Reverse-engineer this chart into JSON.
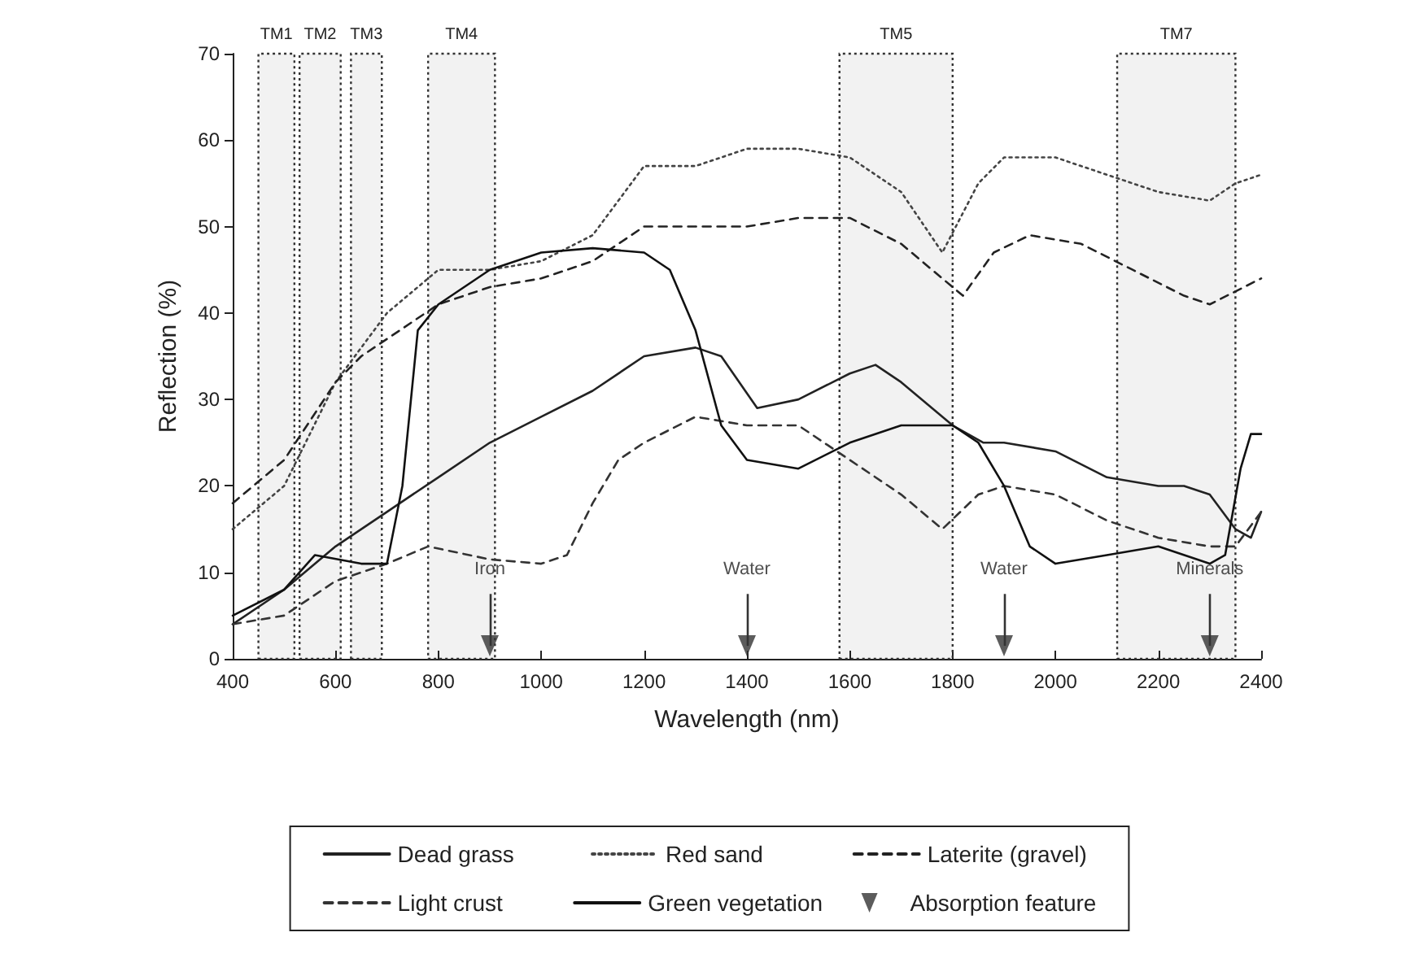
{
  "chart_data": {
    "type": "line",
    "xlabel": "Wavelength (nm)",
    "ylabel": "Reflection (%)",
    "xlim": [
      400,
      2400
    ],
    "xticks": [
      400,
      600,
      800,
      1000,
      1200,
      1400,
      1600,
      1800,
      2000,
      2200,
      2400
    ],
    "ylim": [
      0,
      70
    ],
    "yticks": [
      0,
      10,
      20,
      30,
      40,
      50,
      60,
      70
    ],
    "grid": false,
    "legend": "bottom",
    "marker": "none",
    "series": [
      {
        "name": "Dead grass",
        "color": "#222222",
        "line_style": "solid",
        "x": [
          400,
          500,
          600,
          700,
          800,
          900,
          1000,
          1100,
          1200,
          1300,
          1350,
          1420,
          1500,
          1600,
          1650,
          1700,
          1800,
          1860,
          1900,
          2000,
          2100,
          2200,
          2250,
          2300,
          2350,
          2380,
          2400
        ],
        "values": [
          4,
          8,
          13,
          17,
          21,
          25,
          28,
          31,
          35,
          36,
          35,
          29,
          30,
          33,
          34,
          32,
          27,
          25,
          25,
          24,
          21,
          20,
          20,
          19,
          15,
          14,
          17
        ]
      },
      {
        "name": "Red sand",
        "color": "#444444",
        "line_style": "dotted",
        "x": [
          400,
          500,
          600,
          700,
          800,
          900,
          1000,
          1100,
          1200,
          1300,
          1400,
          1500,
          1600,
          1700,
          1780,
          1850,
          1900,
          2000,
          2100,
          2200,
          2300,
          2350,
          2400
        ],
        "values": [
          15,
          20,
          32,
          40,
          45,
          45,
          46,
          49,
          57,
          57,
          59,
          59,
          58,
          54,
          47,
          55,
          58,
          58,
          56,
          54,
          53,
          55,
          56
        ]
      },
      {
        "name": "Laterite (gravel)",
        "color": "#222222",
        "line_style": "dashed",
        "x": [
          400,
          500,
          600,
          650,
          700,
          800,
          900,
          1000,
          1100,
          1200,
          1300,
          1400,
          1500,
          1600,
          1700,
          1780,
          1820,
          1880,
          1950,
          2050,
          2150,
          2250,
          2300,
          2400
        ],
        "values": [
          18,
          23,
          32,
          35,
          37,
          41,
          43,
          44,
          46,
          50,
          50,
          50,
          51,
          51,
          48,
          44,
          42,
          47,
          49,
          48,
          45,
          42,
          41,
          44
        ]
      },
      {
        "name": "Light crust",
        "color": "#333333",
        "line_style": "dashed",
        "x": [
          400,
          500,
          600,
          700,
          780,
          900,
          1000,
          1050,
          1100,
          1150,
          1200,
          1300,
          1400,
          1500,
          1600,
          1700,
          1780,
          1850,
          1900,
          2000,
          2100,
          2200,
          2300,
          2350,
          2400
        ],
        "values": [
          4,
          5,
          9,
          11,
          13,
          11.5,
          11,
          12,
          18,
          23,
          25,
          28,
          27,
          27,
          23,
          19,
          15,
          19,
          20,
          19,
          16,
          14,
          13,
          13,
          17
        ]
      },
      {
        "name": "Green vegetation",
        "color": "#111111",
        "line_style": "solid",
        "x": [
          400,
          500,
          560,
          650,
          700,
          730,
          760,
          800,
          900,
          1000,
          1100,
          1200,
          1250,
          1300,
          1350,
          1400,
          1500,
          1600,
          1700,
          1800,
          1850,
          1900,
          1950,
          2000,
          2100,
          2200,
          2300,
          2330,
          2360,
          2380,
          2400
        ],
        "values": [
          5,
          8,
          12,
          11,
          11,
          20,
          38,
          41,
          45,
          47,
          47.5,
          47,
          45,
          38,
          27,
          23,
          22,
          25,
          27,
          27,
          25,
          20,
          13,
          11,
          12,
          13,
          11,
          12,
          22,
          26,
          26
        ]
      },
      {
        "name": "Absorption feature",
        "type": "scatter",
        "marker": "triangle",
        "color": "#333333",
        "x": [
          900,
          1400,
          1900,
          2300
        ],
        "values": [
          1.5,
          1.5,
          1.5,
          1.5
        ]
      }
    ],
    "bands": [
      {
        "axis": "x",
        "from": 450,
        "to": 520,
        "label": "TM1"
      },
      {
        "axis": "x",
        "from": 530,
        "to": 610,
        "label": "TM2"
      },
      {
        "axis": "x",
        "from": 630,
        "to": 690,
        "label": "TM3"
      },
      {
        "axis": "x",
        "from": 780,
        "to": 910,
        "label": "TM4"
      },
      {
        "axis": "x",
        "from": 1580,
        "to": 1800,
        "label": "TM5"
      },
      {
        "axis": "x",
        "from": 2120,
        "to": 2350,
        "label": "TM7"
      }
    ],
    "annotations": [
      {
        "text": "Iron",
        "x": 900,
        "y": 1.5
      },
      {
        "text": "Water",
        "x": 1400,
        "y": 1.5
      },
      {
        "text": "Water",
        "x": 1900,
        "y": 1.5
      },
      {
        "text": "Minerals",
        "x": 2300,
        "y": 1.5
      }
    ]
  }
}
